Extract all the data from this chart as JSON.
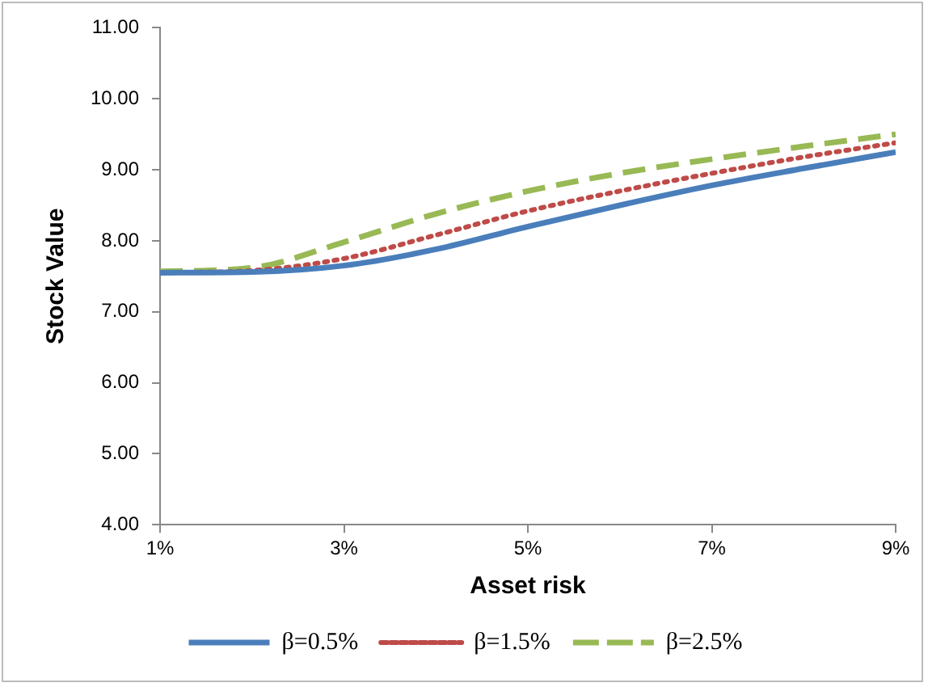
{
  "chart_data": {
    "type": "line",
    "xlabel": "Asset risk",
    "ylabel": "Stock Value",
    "x": [
      1,
      2,
      3,
      4,
      5,
      6,
      7,
      8,
      9
    ],
    "xlim": [
      1,
      9
    ],
    "xticks": [
      {
        "value": 1,
        "label": "1%"
      },
      {
        "value": 3,
        "label": "3%"
      },
      {
        "value": 5,
        "label": "5%"
      },
      {
        "value": 7,
        "label": "7%"
      },
      {
        "value": 9,
        "label": "9%"
      }
    ],
    "ylim": [
      4,
      11
    ],
    "yticks": [
      {
        "value": 4,
        "label": "4.00"
      },
      {
        "value": 5,
        "label": "5.00"
      },
      {
        "value": 6,
        "label": "6.00"
      },
      {
        "value": 7,
        "label": "7.00"
      },
      {
        "value": 8,
        "label": "8.00"
      },
      {
        "value": 9,
        "label": "9.00"
      },
      {
        "value": 10,
        "label": "10.00"
      },
      {
        "value": 11,
        "label": "11.00"
      }
    ],
    "series": [
      {
        "name": "β=0.5%",
        "color": "#4a7ebb",
        "line_style": "solid",
        "values": [
          7.55,
          7.56,
          7.65,
          7.88,
          8.2,
          8.5,
          8.78,
          9.02,
          9.25
        ]
      },
      {
        "name": "β=1.5%",
        "color": "#be4b48",
        "line_style": "dotted",
        "values": [
          7.55,
          7.58,
          7.75,
          8.08,
          8.42,
          8.7,
          8.95,
          9.18,
          9.38
        ]
      },
      {
        "name": "β=2.5%",
        "color": "#98b954",
        "line_style": "dashed",
        "values": [
          7.57,
          7.62,
          7.98,
          8.38,
          8.7,
          8.95,
          9.15,
          9.33,
          9.5
        ]
      }
    ],
    "grid": false,
    "legend": "bottom",
    "marker": "none"
  }
}
